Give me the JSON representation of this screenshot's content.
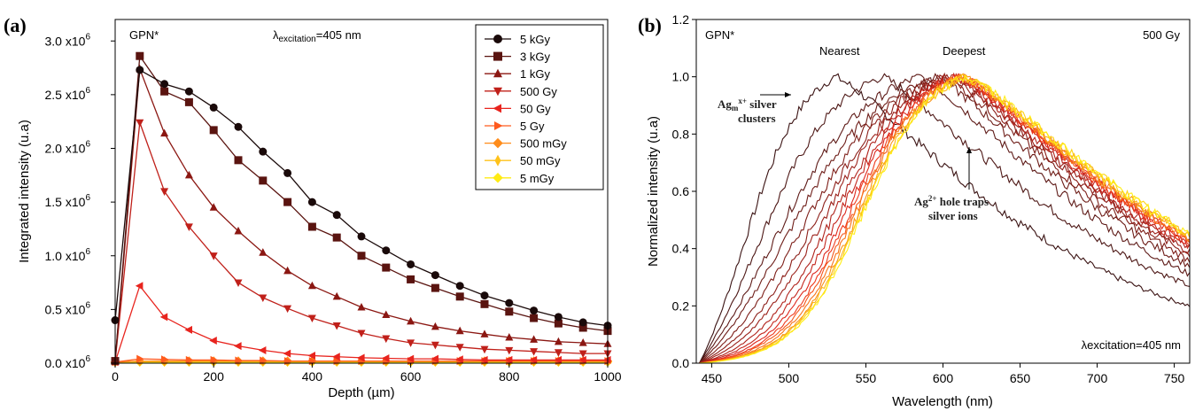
{
  "chart_data": [
    {
      "panel": "(a)",
      "type": "line",
      "xlabel": "Depth (µm)",
      "ylabel": "Integrated intensity (u.a)",
      "xlim": [
        0,
        1000
      ],
      "ylim": [
        0,
        3200000.0
      ],
      "xticks": [
        0,
        200,
        400,
        600,
        800,
        1000
      ],
      "yticks": [
        0,
        500000.0,
        1000000.0,
        1500000.0,
        2000000.0,
        2500000.0,
        3000000.0
      ],
      "ytick_mantissas": [
        "0.0",
        "0.5",
        "1.0",
        "1.5",
        "2.0",
        "2.5",
        "3.0"
      ],
      "ytick_base": "x10",
      "ytick_exp": "6",
      "annotations": {
        "sample": "GPN*",
        "lambda_symbol": "λ",
        "lambda_sub": "excitation",
        "lambda_value": "=405 nm"
      },
      "legend_position": "top-right",
      "x": [
        0,
        50,
        100,
        150,
        200,
        250,
        300,
        350,
        400,
        450,
        500,
        550,
        600,
        650,
        700,
        750,
        800,
        850,
        900,
        950,
        1000
      ],
      "series": [
        {
          "name": "5 kGy",
          "color": "#1a0a0a",
          "marker": "circle",
          "values": [
            400000.0,
            2730000.0,
            2600000.0,
            2530000.0,
            2380000.0,
            2200000.0,
            1970000.0,
            1770000.0,
            1500000.0,
            1380000.0,
            1180000.0,
            1050000.0,
            920000.0,
            820000.0,
            720000.0,
            630000.0,
            560000.0,
            490000.0,
            430000.0,
            380000.0,
            350000.0
          ]
        },
        {
          "name": "3 kGy",
          "color": "#5a1410",
          "marker": "square",
          "values": [
            20000.0,
            2860000.0,
            2530000.0,
            2430000.0,
            2170000.0,
            1890000.0,
            1700000.0,
            1500000.0,
            1270000.0,
            1170000.0,
            1000000.0,
            890000.0,
            780000.0,
            700000.0,
            620000.0,
            550000.0,
            480000.0,
            420000.0,
            370000.0,
            330000.0,
            300000.0
          ]
        },
        {
          "name": "1 kGy",
          "color": "#8b1712",
          "marker": "triangle-up",
          "values": [
            20000.0,
            2740000.0,
            2140000.0,
            1750000.0,
            1450000.0,
            1230000.0,
            1030000.0,
            860000.0,
            720000.0,
            620000.0,
            520000.0,
            450000.0,
            390000.0,
            340000.0,
            300000.0,
            270000.0,
            240000.0,
            220000.0,
            200000.0,
            190000.0,
            180000.0
          ]
        },
        {
          "name": "500 Gy",
          "color": "#c0201a",
          "marker": "triangle-down",
          "values": [
            20000.0,
            2240000.0,
            1600000.0,
            1270000.0,
            1000000.0,
            750000.0,
            610000.0,
            510000.0,
            420000.0,
            350000.0,
            280000.0,
            230000.0,
            190000.0,
            170000.0,
            150000.0,
            130000.0,
            120000.0,
            110000.0,
            100000.0,
            90000.0,
            90000.0
          ]
        },
        {
          "name": "50 Gy",
          "color": "#e8241e",
          "marker": "triangle-left",
          "values": [
            10000.0,
            720000.0,
            430000.0,
            310000.0,
            210000.0,
            160000.0,
            120000.0,
            90000.0,
            70000.0,
            60000.0,
            50000.0,
            45000.0,
            40000.0,
            40000.0,
            35000.0,
            30000.0,
            30000.0,
            30000.0,
            30000.0,
            30000.0,
            30000.0
          ]
        },
        {
          "name": "5 Gy",
          "color": "#ff5a1e",
          "marker": "triangle-right",
          "values": [
            10000.0,
            40000.0,
            35000.0,
            30000.0,
            30000.0,
            25000.0,
            25000.0,
            20000.0,
            20000.0,
            20000.0,
            20000.0,
            20000.0,
            20000.0,
            20000.0,
            20000.0,
            20000.0,
            20000.0,
            20000.0,
            20000.0,
            20000.0,
            20000.0
          ]
        },
        {
          "name": "500 mGy",
          "color": "#ff8c1a",
          "marker": "diamond",
          "values": [
            10000.0,
            20000.0,
            20000.0,
            20000.0,
            20000.0,
            20000.0,
            20000.0,
            20000.0,
            20000.0,
            20000.0,
            20000.0,
            20000.0,
            20000.0,
            20000.0,
            20000.0,
            20000.0,
            20000.0,
            20000.0,
            20000.0,
            20000.0,
            20000.0
          ]
        },
        {
          "name": "50 mGy",
          "color": "#ffc21a",
          "marker": "diamond-thin",
          "values": [
            10000.0,
            15000.0,
            15000.0,
            15000.0,
            15000.0,
            15000.0,
            15000.0,
            15000.0,
            15000.0,
            15000.0,
            15000.0,
            15000.0,
            15000.0,
            15000.0,
            15000.0,
            15000.0,
            15000.0,
            15000.0,
            15000.0,
            15000.0,
            15000.0
          ]
        },
        {
          "name": "5 mGy",
          "color": "#ffeb14",
          "marker": "diamond",
          "values": [
            10000.0,
            10000.0,
            10000.0,
            10000.0,
            10000.0,
            10000.0,
            10000.0,
            10000.0,
            10000.0,
            10000.0,
            10000.0,
            10000.0,
            10000.0,
            10000.0,
            10000.0,
            10000.0,
            10000.0,
            10000.0,
            10000.0,
            10000.0,
            10000.0
          ]
        }
      ]
    },
    {
      "panel": "(b)",
      "type": "line",
      "xlabel": "Wavelength (nm)",
      "ylabel": "Normalized intensity (u.a)",
      "xlim": [
        440,
        760
      ],
      "ylim": [
        0,
        1.2
      ],
      "xticks": [
        450,
        500,
        550,
        600,
        650,
        700,
        750
      ],
      "yticks": [
        0.0,
        0.2,
        0.4,
        0.6,
        0.8,
        1.0,
        1.2
      ],
      "annotations": {
        "sample": "GPN*",
        "dose": "500 Gy",
        "nearest": "Nearest",
        "deepest": "Deepest",
        "excitation": "λexcitation=405 nm",
        "ag_clusters_a": "Ag",
        "ag_clusters_sub": "m",
        "ag_clusters_sup": "x+",
        "ag_clusters_b": " silver",
        "ag_clusters_c": "clusters",
        "ag_ions_a": "Ag",
        "ag_ions_sup": "2+",
        "ag_ions_b": " hole traps",
        "ag_ions_c": "silver ions"
      },
      "colors": {
        "nearest": "#8b1a1a",
        "deepest": "#f4a81c"
      },
      "spectra": [
        {
          "depth_index": 0,
          "color": "#3a1212",
          "peak_nm": 530,
          "rise_mid": 470,
          "tail_760": 0.2
        },
        {
          "depth_index": 1,
          "color": "#4d1715",
          "peak_nm": 560,
          "rise_mid": 478,
          "tail_760": 0.27
        },
        {
          "depth_index": 2,
          "color": "#5e1a17",
          "peak_nm": 585,
          "rise_mid": 488,
          "tail_760": 0.31
        },
        {
          "depth_index": 3,
          "color": "#6e1d18",
          "peak_nm": 595,
          "rise_mid": 498,
          "tail_760": 0.34
        },
        {
          "depth_index": 4,
          "color": "#7e1f19",
          "peak_nm": 600,
          "rise_mid": 508,
          "tail_760": 0.36
        },
        {
          "depth_index": 5,
          "color": "#8d201a",
          "peak_nm": 603,
          "rise_mid": 516,
          "tail_760": 0.38
        },
        {
          "depth_index": 6,
          "color": "#9c221b",
          "peak_nm": 605,
          "rise_mid": 522,
          "tail_760": 0.39
        },
        {
          "depth_index": 7,
          "color": "#b0231c",
          "peak_nm": 607,
          "rise_mid": 528,
          "tail_760": 0.4
        },
        {
          "depth_index": 8,
          "color": "#c4251d",
          "peak_nm": 608,
          "rise_mid": 532,
          "tail_760": 0.41
        },
        {
          "depth_index": 9,
          "color": "#dd281e",
          "peak_nm": 610,
          "rise_mid": 536,
          "tail_760": 0.42
        },
        {
          "depth_index": 10,
          "color": "#ee3a1d",
          "peak_nm": 611,
          "rise_mid": 539,
          "tail_760": 0.42
        },
        {
          "depth_index": 11,
          "color": "#f4561c",
          "peak_nm": 612,
          "rise_mid": 541,
          "tail_760": 0.43
        },
        {
          "depth_index": 12,
          "color": "#f7741b",
          "peak_nm": 612,
          "rise_mid": 543,
          "tail_760": 0.43
        },
        {
          "depth_index": 13,
          "color": "#f9941a",
          "peak_nm": 613,
          "rise_mid": 545,
          "tail_760": 0.44
        },
        {
          "depth_index": 14,
          "color": "#fbb418",
          "peak_nm": 614,
          "rise_mid": 546,
          "tail_760": 0.44
        },
        {
          "depth_index": 15,
          "color": "#fdd416",
          "peak_nm": 614,
          "rise_mid": 547,
          "tail_760": 0.45
        },
        {
          "depth_index": 16,
          "color": "#ffee14",
          "peak_nm": 615,
          "rise_mid": 548,
          "tail_760": 0.45
        }
      ]
    }
  ]
}
